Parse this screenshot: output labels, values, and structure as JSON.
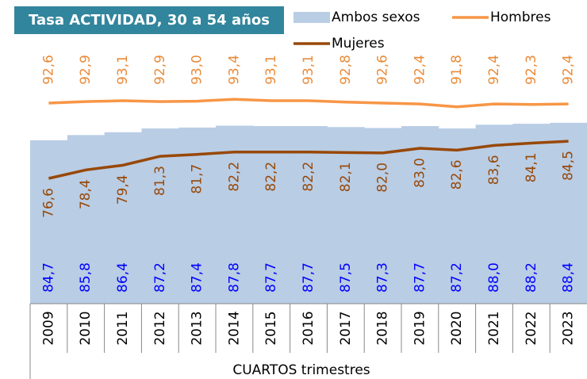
{
  "chart_data": {
    "type": "area_line",
    "title": "Tasa ACTIVIDAD, 30 a 54 años",
    "xlabel": "CUARTOS trimestres",
    "categories": [
      "2009",
      "2010",
      "2011",
      "2012",
      "2013",
      "2014",
      "2015",
      "2016",
      "2017",
      "2018",
      "2019",
      "2020",
      "2021",
      "2022",
      "2023"
    ],
    "ylim": [
      50,
      100
    ],
    "series": [
      {
        "name": "Ambos sexos",
        "color": "#b9cde5",
        "kind": "area",
        "values": [
          84.7,
          85.8,
          86.4,
          87.2,
          87.4,
          87.8,
          87.7,
          87.7,
          87.5,
          87.3,
          87.7,
          87.2,
          88.0,
          88.2,
          88.4
        ],
        "value_labels": [
          "84,7",
          "85,8",
          "86,4",
          "87,2",
          "87,4",
          "87,8",
          "87,7",
          "87,7",
          "87,5",
          "87,3",
          "87,7",
          "87,2",
          "88,0",
          "88,2",
          "88,4"
        ]
      },
      {
        "name": "Hombres",
        "color": "#f79646",
        "kind": "line",
        "values": [
          92.6,
          92.9,
          93.1,
          92.9,
          93.0,
          93.4,
          93.1,
          93.1,
          92.8,
          92.6,
          92.4,
          91.8,
          92.4,
          92.3,
          92.4
        ],
        "value_labels": [
          "92,6",
          "92,9",
          "93,1",
          "92,9",
          "93,0",
          "93,4",
          "93,1",
          "93,1",
          "92,8",
          "92,6",
          "92,4",
          "91,8",
          "92,4",
          "92,3",
          "92,4"
        ]
      },
      {
        "name": "Mujeres",
        "color": "#984807",
        "kind": "line",
        "values": [
          76.6,
          78.4,
          79.4,
          81.3,
          81.7,
          82.2,
          82.2,
          82.2,
          82.1,
          82.0,
          83.0,
          82.6,
          83.6,
          84.1,
          84.5
        ],
        "value_labels": [
          "76,6",
          "78,4",
          "79,4",
          "81,3",
          "81,7",
          "82,2",
          "82,2",
          "82,2",
          "82,1",
          "82,0",
          "83,0",
          "82,6",
          "83,6",
          "84,1",
          "84,5"
        ]
      }
    ]
  }
}
